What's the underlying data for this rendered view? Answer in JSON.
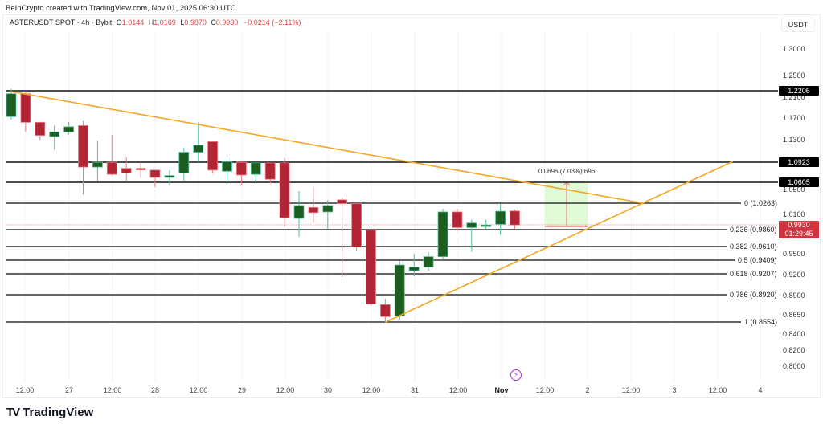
{
  "header": {
    "credit": "BeInCrypto created with TradingView.com, Nov 01, 2025 06:30 UTC"
  },
  "legend": {
    "symbol": "ASTERUSDT SPOT · 4h · Bybit",
    "open_label": "O",
    "open": "1.0144",
    "high_label": "H",
    "high": "1.0169",
    "low_label": "L",
    "low": "0.9870",
    "close_label": "C",
    "close": "0.9930",
    "change": "−0.0214 (−2.11%)"
  },
  "axis": {
    "unit": "USDT",
    "price_ticks": [
      "1.3000",
      "1.2500",
      "1.2100",
      "1.1700",
      "1.1300",
      "1.0500",
      "1.0100",
      "0.9500",
      "0.9200",
      "0.8900",
      "0.8650",
      "0.8400",
      "0.8200",
      "0.8000"
    ],
    "time_ticks": [
      "12:00",
      "27",
      "12:00",
      "28",
      "12:00",
      "29",
      "12:00",
      "30",
      "12:00",
      "31",
      "12:00",
      "Nov",
      "12:00",
      "2",
      "12:00",
      "3",
      "12:00",
      "4"
    ]
  },
  "tags": {
    "resistance_1": "1.2206",
    "resistance_2": "1.0923",
    "resistance_3": "1.0605",
    "last_price": "0.9930",
    "countdown": "01:29:45"
  },
  "fib_levels": [
    {
      "label": "0 (1.0263)"
    },
    {
      "label": "0.236 (0.9860)"
    },
    {
      "label": "0.382 (0.9610)"
    },
    {
      "label": "0.5 (0.9409)"
    },
    {
      "label": "0.618 (0.9207)"
    },
    {
      "label": "0.786 (0.8920)"
    },
    {
      "label": "1 (0.8554)"
    }
  ],
  "measure": {
    "label": "0.0696 (7.03%) 696"
  },
  "brand": {
    "name": "TradingView",
    "logo": "TV"
  },
  "colors": {
    "up": "#1b5e20",
    "up_border": "#4fbf9f",
    "down": "#b22534",
    "down_border": "#f07a85",
    "trendline": "#f5a623",
    "level_line": "#000000",
    "measure_fill": "#d8f7cc",
    "measure_line": "#e57373"
  },
  "chart_data": {
    "type": "candlestick",
    "title": "ASTERUSDT SPOT · 4h · Bybit",
    "xlabel": "",
    "ylabel": "USDT",
    "ylim": [
      0.79,
      1.33
    ],
    "scale": "log",
    "grid": true,
    "candles": [
      {
        "o": 1.172,
        "h": 1.223,
        "l": 1.167,
        "c": 1.214
      },
      {
        "o": 1.214,
        "h": 1.219,
        "l": 1.145,
        "c": 1.162
      },
      {
        "o": 1.162,
        "h": 1.16,
        "l": 1.131,
        "c": 1.139
      },
      {
        "o": 1.137,
        "h": 1.156,
        "l": 1.114,
        "c": 1.145
      },
      {
        "o": 1.145,
        "h": 1.163,
        "l": 1.141,
        "c": 1.154
      },
      {
        "o": 1.156,
        "h": 1.164,
        "l": 1.04,
        "c": 1.085
      },
      {
        "o": 1.085,
        "h": 1.13,
        "l": 1.062,
        "c": 1.093
      },
      {
        "o": 1.093,
        "h": 1.14,
        "l": 1.071,
        "c": 1.073
      },
      {
        "o": 1.083,
        "h": 1.102,
        "l": 1.062,
        "c": 1.075
      },
      {
        "o": 1.083,
        "h": 1.093,
        "l": 1.067,
        "c": 1.082
      },
      {
        "o": 1.08,
        "h": 1.08,
        "l": 1.052,
        "c": 1.068
      },
      {
        "o": 1.068,
        "h": 1.08,
        "l": 1.056,
        "c": 1.071
      },
      {
        "o": 1.075,
        "h": 1.117,
        "l": 1.062,
        "c": 1.11
      },
      {
        "o": 1.11,
        "h": 1.162,
        "l": 1.093,
        "c": 1.122
      },
      {
        "o": 1.128,
        "h": 1.128,
        "l": 1.074,
        "c": 1.08
      },
      {
        "o": 1.078,
        "h": 1.098,
        "l": 1.06,
        "c": 1.094
      },
      {
        "o": 1.093,
        "h": 1.096,
        "l": 1.056,
        "c": 1.072
      },
      {
        "o": 1.073,
        "h": 1.093,
        "l": 1.06,
        "c": 1.092
      },
      {
        "o": 1.092,
        "h": 1.082,
        "l": 1.058,
        "c": 1.065
      },
      {
        "o": 1.092,
        "h": 1.1,
        "l": 0.991,
        "c": 1.004
      },
      {
        "o": 1.003,
        "h": 1.046,
        "l": 0.975,
        "c": 1.023
      },
      {
        "o": 1.02,
        "h": 1.053,
        "l": 0.996,
        "c": 1.012
      },
      {
        "o": 1.013,
        "h": 1.032,
        "l": 0.987,
        "c": 1.023
      },
      {
        "o": 1.032,
        "h": 1.035,
        "l": 0.917,
        "c": 1.026
      },
      {
        "o": 1.026,
        "h": 1.022,
        "l": 0.955,
        "c": 0.96
      },
      {
        "o": 0.985,
        "h": 0.992,
        "l": 0.878,
        "c": 0.88
      },
      {
        "o": 0.879,
        "h": 0.887,
        "l": 0.855,
        "c": 0.863
      },
      {
        "o": 0.864,
        "h": 0.939,
        "l": 0.859,
        "c": 0.934
      },
      {
        "o": 0.926,
        "h": 0.95,
        "l": 0.918,
        "c": 0.931
      },
      {
        "o": 0.931,
        "h": 0.952,
        "l": 0.926,
        "c": 0.946
      },
      {
        "o": 0.946,
        "h": 1.018,
        "l": 0.941,
        "c": 1.013
      },
      {
        "o": 1.013,
        "h": 1.018,
        "l": 0.983,
        "c": 0.989
      },
      {
        "o": 0.989,
        "h": 1.001,
        "l": 0.953,
        "c": 0.996
      },
      {
        "o": 0.992,
        "h": 1.001,
        "l": 0.986,
        "c": 0.993
      },
      {
        "o": 0.994,
        "h": 1.026,
        "l": 0.978,
        "c": 1.014
      },
      {
        "o": 1.0144,
        "h": 1.0169,
        "l": 0.987,
        "c": 0.993
      }
    ],
    "horizontal_levels": [
      1.2206,
      1.0923,
      1.0605
    ],
    "fibonacci": {
      "0": 1.0263,
      "0.236": 0.986,
      "0.382": 0.961,
      "0.5": 0.9409,
      "0.618": 0.9207,
      "0.786": 0.892,
      "1": 0.8554
    },
    "trendlines": [
      {
        "name": "descending resistance",
        "from": [
          1.223,
          "Oct 26 12:00"
        ],
        "to": [
          1.0263,
          "Nov 2 ~18:00"
        ]
      },
      {
        "name": "ascending support",
        "from": [
          0.8554,
          "Oct 30 ~20:00"
        ],
        "to": [
          1.0923,
          "Nov 3 ~12:00"
        ]
      }
    ],
    "measurement": {
      "delta": 0.0696,
      "percent": "7.03%",
      "ticks": 696
    },
    "last_price": 0.993
  }
}
